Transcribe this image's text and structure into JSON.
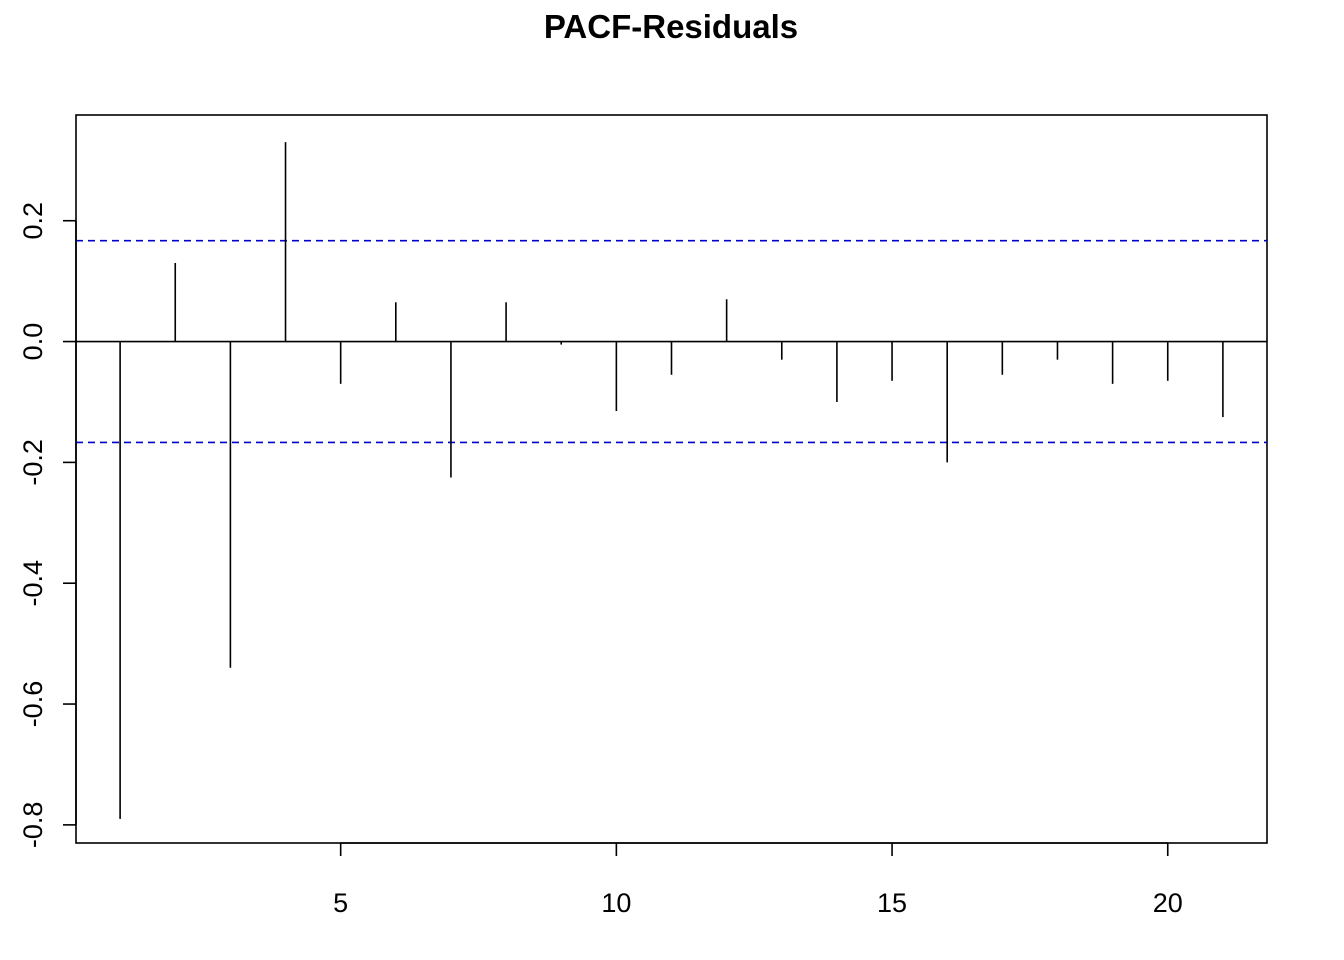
{
  "chart_data": {
    "type": "bar",
    "title": "PACF-Residuals",
    "xlabel": "",
    "ylabel": "",
    "x": [
      1,
      2,
      3,
      4,
      5,
      6,
      7,
      8,
      9,
      10,
      11,
      12,
      13,
      14,
      15,
      16,
      17,
      18,
      19,
      20,
      21
    ],
    "values": [
      -0.79,
      0.13,
      -0.54,
      0.33,
      -0.07,
      0.065,
      -0.225,
      0.065,
      -0.005,
      -0.115,
      -0.055,
      0.07,
      -0.03,
      -0.1,
      -0.065,
      -0.2,
      -0.055,
      -0.03,
      -0.07,
      -0.065,
      -0.125
    ],
    "confidence_bound": 0.167,
    "confidence_color": "#0000cd",
    "xlim": [
      0.2,
      21.8
    ],
    "ylim": [
      -0.83,
      0.375
    ],
    "x_ticks": [
      5,
      10,
      15,
      20
    ],
    "x_tick_labels": [
      "5",
      "10",
      "15",
      "20"
    ],
    "y_ticks": [
      -0.8,
      -0.6,
      -0.4,
      -0.2,
      0.0,
      0.2
    ],
    "y_tick_labels": [
      "-0.8",
      "-0.6",
      "-0.4",
      "-0.2",
      "0.0",
      "0.2"
    ],
    "grid": false,
    "legend": "none"
  }
}
